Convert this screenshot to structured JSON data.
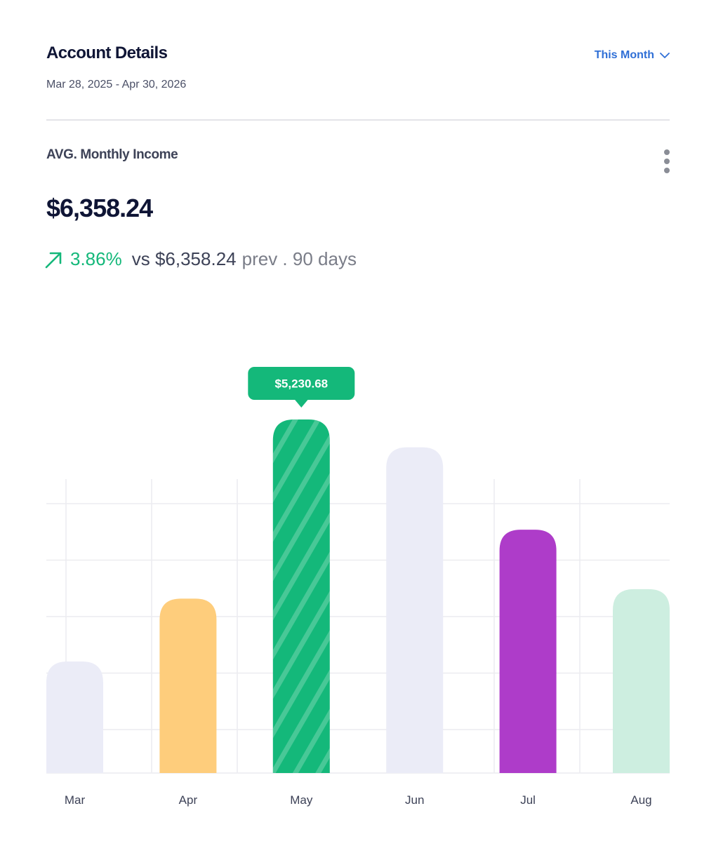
{
  "header": {
    "title": "Account Details",
    "date_range": "Mar 28, 2025 - Apr 30, 2026",
    "period_select": "This Month"
  },
  "metric": {
    "label": "AVG. Monthly Income",
    "value": "$6,358.24",
    "change_pct": "3.86%",
    "vs_text": "vs $6,358.24",
    "prev_text": "prev . 90 days"
  },
  "icons": {
    "period_chevron": "chevron-down-icon",
    "more_menu": "more-vertical-icon",
    "trend": "arrow-up-right-icon"
  },
  "colors": {
    "accent_green": "#14b87a",
    "link_blue": "#2f6fd6",
    "text_dark": "#0f1535"
  },
  "chart_data": {
    "type": "bar",
    "categories": [
      "Mar",
      "Apr",
      "May",
      "Jun",
      "Jul",
      "Aug"
    ],
    "values": [
      1650,
      2580,
      5230.68,
      4820,
      3600,
      2720
    ],
    "colors": [
      "#ebecf7",
      "#fecd7c",
      "#14b87a",
      "#ebecf7",
      "#ae3cc9",
      "#cdeee0"
    ],
    "highlighted_index": 2,
    "highlight_pattern": "diagonal-stripes",
    "tooltip": "$5,230.68",
    "ylim": [
      0,
      5230.68
    ],
    "grid": true,
    "title": "",
    "xlabel": "",
    "ylabel": ""
  }
}
